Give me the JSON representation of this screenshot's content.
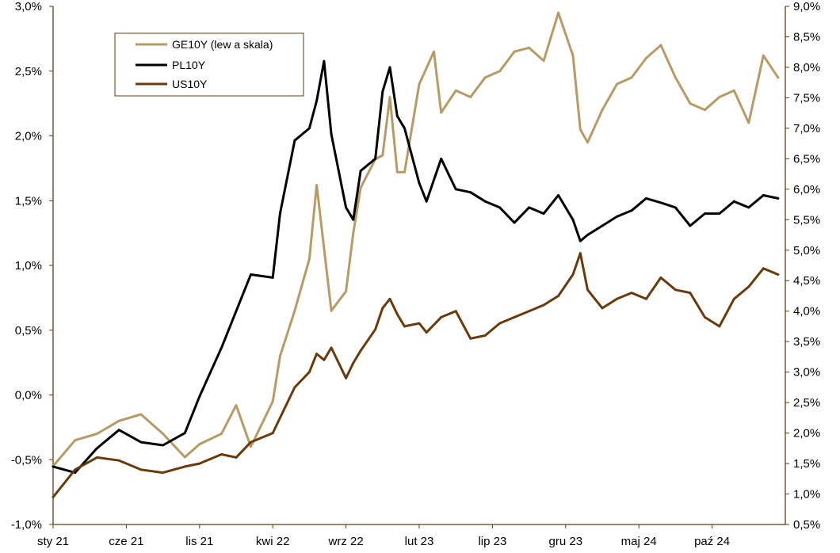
{
  "chart_data": {
    "type": "line",
    "title": "",
    "xlabel": "",
    "ylabel_left": "",
    "ylabel_right": "",
    "left_axis": {
      "range": [
        -1.0,
        3.0
      ],
      "ticks": [
        -1.0,
        -0.5,
        0.0,
        0.5,
        1.0,
        1.5,
        2.0,
        2.5,
        3.0
      ],
      "tick_labels": [
        "-1,0%",
        "-0,5%",
        "0,0%",
        "0,5%",
        "1,0%",
        "1,5%",
        "2,0%",
        "2,5%",
        "3,0%"
      ]
    },
    "right_axis": {
      "range": [
        0.5,
        9.0
      ],
      "ticks": [
        0.5,
        1.0,
        1.5,
        2.0,
        2.5,
        3.0,
        3.5,
        4.0,
        4.5,
        5.0,
        5.5,
        6.0,
        6.5,
        7.0,
        7.5,
        8.0,
        8.5,
        9.0
      ],
      "tick_labels": [
        "0,5%",
        "1,0%",
        "1,5%",
        "2,0%",
        "2,5%",
        "3,0%",
        "3,5%",
        "4,0%",
        "4,5%",
        "5,0%",
        "5,5%",
        "6,0%",
        "6,5%",
        "7,0%",
        "7,5%",
        "8,0%",
        "8,5%",
        "9,0%"
      ]
    },
    "x_axis": {
      "range": [
        0,
        1
      ]
    },
    "categories": [
      "sty 21",
      "cze 21",
      "lis 21",
      "kwi 22",
      "wrz 22",
      "lut 23",
      "lip 23",
      "gru 23",
      "maj 24",
      "paź 24"
    ],
    "category_positions": [
      0.0,
      0.1,
      0.2,
      0.3,
      0.4,
      0.5,
      0.6,
      0.7,
      0.8,
      0.9
    ],
    "legend": {
      "placement": "top-left",
      "entries": [
        "GE10Y  (lew a skala)",
        "PL10Y",
        "US10Y"
      ]
    },
    "series": [
      {
        "name": "GE10Y  (lew a skala)",
        "axis": "left",
        "color": "#b89a64",
        "x": [
          0.0,
          0.03,
          0.06,
          0.09,
          0.12,
          0.15,
          0.18,
          0.2,
          0.23,
          0.25,
          0.27,
          0.3,
          0.31,
          0.33,
          0.35,
          0.36,
          0.38,
          0.4,
          0.41,
          0.42,
          0.44,
          0.45,
          0.46,
          0.47,
          0.48,
          0.5,
          0.52,
          0.53,
          0.55,
          0.57,
          0.59,
          0.61,
          0.63,
          0.65,
          0.67,
          0.69,
          0.71,
          0.72,
          0.73,
          0.75,
          0.77,
          0.79,
          0.81,
          0.83,
          0.85,
          0.87,
          0.89,
          0.91,
          0.93,
          0.95,
          0.97,
          0.99
        ],
        "y": [
          -0.55,
          -0.35,
          -0.3,
          -0.2,
          -0.15,
          -0.3,
          -0.48,
          -0.38,
          -0.3,
          -0.08,
          -0.4,
          -0.05,
          0.3,
          0.65,
          1.05,
          1.62,
          0.65,
          0.8,
          1.25,
          1.6,
          1.82,
          1.85,
          2.3,
          1.72,
          1.72,
          2.4,
          2.65,
          2.18,
          2.35,
          2.3,
          2.45,
          2.5,
          2.65,
          2.68,
          2.58,
          2.95,
          2.62,
          2.05,
          1.95,
          2.2,
          2.4,
          2.45,
          2.6,
          2.7,
          2.45,
          2.25,
          2.2,
          2.3,
          2.35,
          2.1,
          2.62,
          2.45
        ]
      },
      {
        "name": "PL10Y",
        "axis": "right",
        "color": "#000000",
        "x": [
          0.0,
          0.03,
          0.06,
          0.09,
          0.12,
          0.15,
          0.18,
          0.2,
          0.23,
          0.25,
          0.27,
          0.3,
          0.31,
          0.33,
          0.35,
          0.36,
          0.37,
          0.38,
          0.4,
          0.41,
          0.42,
          0.44,
          0.45,
          0.46,
          0.47,
          0.48,
          0.5,
          0.51,
          0.53,
          0.55,
          0.57,
          0.59,
          0.61,
          0.63,
          0.65,
          0.67,
          0.69,
          0.71,
          0.72,
          0.73,
          0.75,
          0.77,
          0.79,
          0.81,
          0.83,
          0.85,
          0.87,
          0.89,
          0.91,
          0.93,
          0.95,
          0.97,
          0.99
        ],
        "y": [
          1.45,
          1.35,
          1.75,
          2.05,
          1.85,
          1.8,
          2.0,
          2.6,
          3.4,
          4.0,
          4.6,
          4.55,
          5.6,
          6.8,
          7.0,
          7.45,
          8.1,
          6.9,
          5.7,
          5.5,
          6.3,
          6.5,
          7.6,
          8.0,
          7.2,
          7.0,
          6.1,
          5.8,
          6.5,
          6.0,
          5.95,
          5.8,
          5.7,
          5.45,
          5.7,
          5.6,
          5.9,
          5.5,
          5.15,
          5.25,
          5.4,
          5.55,
          5.65,
          5.85,
          5.78,
          5.7,
          5.4,
          5.6,
          5.6,
          5.8,
          5.7,
          5.9,
          5.85
        ]
      },
      {
        "name": "US10Y",
        "axis": "right",
        "color": "#6b3a0a",
        "x": [
          0.0,
          0.03,
          0.06,
          0.09,
          0.12,
          0.15,
          0.18,
          0.2,
          0.23,
          0.25,
          0.27,
          0.3,
          0.31,
          0.33,
          0.35,
          0.36,
          0.37,
          0.38,
          0.4,
          0.41,
          0.42,
          0.44,
          0.45,
          0.46,
          0.47,
          0.48,
          0.5,
          0.51,
          0.53,
          0.55,
          0.57,
          0.59,
          0.61,
          0.63,
          0.65,
          0.67,
          0.69,
          0.71,
          0.72,
          0.73,
          0.75,
          0.77,
          0.79,
          0.81,
          0.83,
          0.85,
          0.87,
          0.89,
          0.91,
          0.93,
          0.95,
          0.97,
          0.99
        ],
        "y": [
          0.95,
          1.4,
          1.6,
          1.55,
          1.4,
          1.35,
          1.45,
          1.5,
          1.65,
          1.6,
          1.85,
          2.0,
          2.25,
          2.75,
          3.0,
          3.3,
          3.2,
          3.4,
          2.9,
          3.15,
          3.35,
          3.7,
          4.05,
          4.2,
          3.95,
          3.75,
          3.8,
          3.65,
          3.9,
          4.0,
          3.55,
          3.6,
          3.8,
          3.9,
          4.0,
          4.1,
          4.25,
          4.6,
          4.95,
          4.35,
          4.05,
          4.2,
          4.3,
          4.2,
          4.55,
          4.35,
          4.3,
          3.9,
          3.75,
          4.2,
          4.4,
          4.7,
          4.6
        ]
      }
    ]
  }
}
